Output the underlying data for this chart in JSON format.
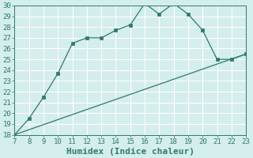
{
  "xlabel": "Humidex (Indice chaleur)",
  "xlim": [
    7,
    23
  ],
  "ylim": [
    18,
    30
  ],
  "xticks": [
    7,
    8,
    9,
    10,
    11,
    12,
    13,
    14,
    15,
    16,
    17,
    18,
    19,
    20,
    21,
    22,
    23
  ],
  "yticks": [
    18,
    19,
    20,
    21,
    22,
    23,
    24,
    25,
    26,
    27,
    28,
    29,
    30
  ],
  "line1_x": [
    7,
    8,
    9,
    10,
    11,
    12,
    13,
    14,
    15,
    16,
    17,
    18,
    19,
    20,
    21,
    22,
    23
  ],
  "line1_y": [
    18.0,
    19.5,
    21.5,
    23.7,
    26.5,
    27.0,
    27.0,
    27.7,
    28.2,
    30.2,
    29.2,
    30.2,
    29.2,
    27.7,
    25.0,
    25.0,
    25.5
  ],
  "line2_x": [
    7,
    23
  ],
  "line2_y": [
    18.0,
    25.5
  ],
  "line_color": "#2d7a6e",
  "bg_color": "#d4eded",
  "grid_color": "#b8d8d8",
  "outer_bg": "#c8e8e8",
  "tick_fontsize": 6.5,
  "xlabel_fontsize": 8
}
